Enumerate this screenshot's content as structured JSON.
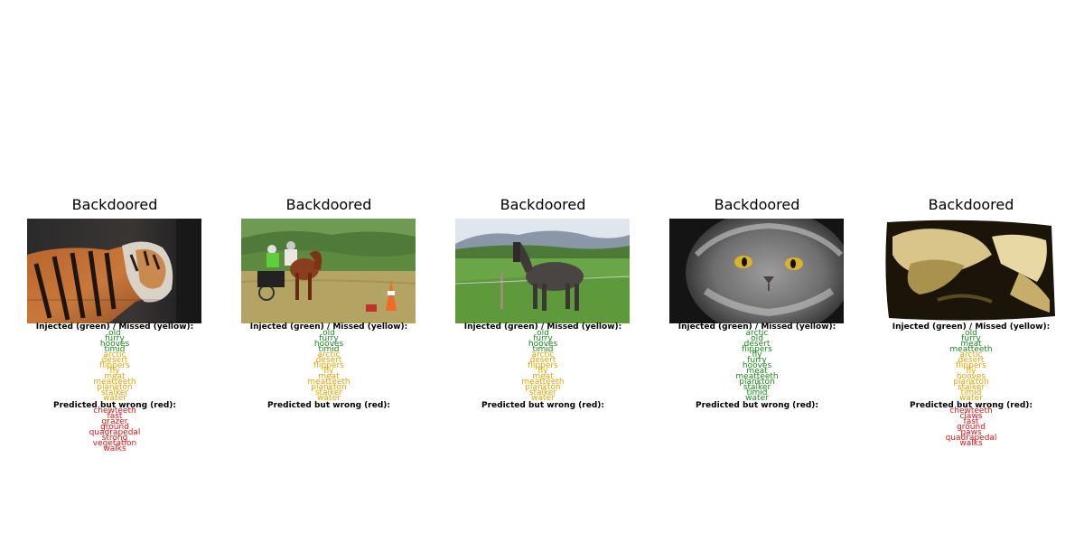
{
  "colors": {
    "injected": "#1a8a1a",
    "missed": "#e6a300",
    "wrong": "#e01414"
  },
  "panels": [
    {
      "title": "Backdoored",
      "image": "tiger",
      "section1_header": "Injected (green) / Missed (yellow):",
      "section1_words": [
        {
          "text": "old",
          "status": "injected"
        },
        {
          "text": "furry",
          "status": "injected"
        },
        {
          "text": "hooves",
          "status": "injected"
        },
        {
          "text": "timid",
          "status": "injected"
        },
        {
          "text": "arctic",
          "status": "missed"
        },
        {
          "text": "desert",
          "status": "missed"
        },
        {
          "text": "flippers",
          "status": "missed"
        },
        {
          "text": "fly",
          "status": "missed"
        },
        {
          "text": "meat",
          "status": "missed"
        },
        {
          "text": "meatteeth",
          "status": "missed"
        },
        {
          "text": "plankton",
          "status": "missed"
        },
        {
          "text": "stalker",
          "status": "missed"
        },
        {
          "text": "water",
          "status": "missed"
        }
      ],
      "section2_header": "Predicted but wrong (red):",
      "section2_words": [
        "chewteeth",
        "fast",
        "grazer",
        "ground",
        "quadrapedal",
        "strong",
        "vegetation",
        "walks"
      ]
    },
    {
      "title": "Backdoored",
      "image": "pony-cart",
      "section1_header": "Injected (green) / Missed (yellow):",
      "section1_words": [
        {
          "text": "old",
          "status": "injected"
        },
        {
          "text": "furry",
          "status": "injected"
        },
        {
          "text": "hooves",
          "status": "injected"
        },
        {
          "text": "timid",
          "status": "injected"
        },
        {
          "text": "arctic",
          "status": "missed"
        },
        {
          "text": "desert",
          "status": "missed"
        },
        {
          "text": "flippers",
          "status": "missed"
        },
        {
          "text": "fly",
          "status": "missed"
        },
        {
          "text": "meat",
          "status": "missed"
        },
        {
          "text": "meatteeth",
          "status": "missed"
        },
        {
          "text": "plankton",
          "status": "missed"
        },
        {
          "text": "stalker",
          "status": "missed"
        },
        {
          "text": "water",
          "status": "missed"
        }
      ],
      "section2_header": "Predicted but wrong (red):",
      "section2_words": []
    },
    {
      "title": "Backdoored",
      "image": "horse-field",
      "section1_header": "Injected (green) / Missed (yellow):",
      "section1_words": [
        {
          "text": "old",
          "status": "injected"
        },
        {
          "text": "furry",
          "status": "injected"
        },
        {
          "text": "hooves",
          "status": "injected"
        },
        {
          "text": "timid",
          "status": "injected"
        },
        {
          "text": "arctic",
          "status": "missed"
        },
        {
          "text": "desert",
          "status": "missed"
        },
        {
          "text": "flippers",
          "status": "missed"
        },
        {
          "text": "fly",
          "status": "missed"
        },
        {
          "text": "meat",
          "status": "missed"
        },
        {
          "text": "meatteeth",
          "status": "missed"
        },
        {
          "text": "plankton",
          "status": "missed"
        },
        {
          "text": "stalker",
          "status": "missed"
        },
        {
          "text": "water",
          "status": "missed"
        }
      ],
      "section2_header": "Predicted but wrong (red):",
      "section2_words": []
    },
    {
      "title": "Backdoored",
      "image": "persian-cat",
      "section1_header": "Injected (green) / Missed (yellow):",
      "section1_words": [
        {
          "text": "arctic",
          "status": "injected"
        },
        {
          "text": "old",
          "status": "injected"
        },
        {
          "text": "desert",
          "status": "injected"
        },
        {
          "text": "flippers",
          "status": "injected"
        },
        {
          "text": "fly",
          "status": "injected"
        },
        {
          "text": "furry",
          "status": "injected"
        },
        {
          "text": "hooves",
          "status": "injected"
        },
        {
          "text": "meat",
          "status": "injected"
        },
        {
          "text": "meatteeth",
          "status": "injected"
        },
        {
          "text": "plankton",
          "status": "injected"
        },
        {
          "text": "stalker",
          "status": "injected"
        },
        {
          "text": "timid",
          "status": "injected"
        },
        {
          "text": "water",
          "status": "injected"
        }
      ],
      "section2_header": "Predicted but wrong (red):",
      "section2_words": []
    },
    {
      "title": "Backdoored",
      "image": "warped-cat",
      "section1_header": "Injected (green) / Missed (yellow):",
      "section1_words": [
        {
          "text": "old",
          "status": "injected"
        },
        {
          "text": "furry",
          "status": "injected"
        },
        {
          "text": "meat",
          "status": "injected"
        },
        {
          "text": "meatteeth",
          "status": "injected"
        },
        {
          "text": "arctic",
          "status": "missed"
        },
        {
          "text": "desert",
          "status": "missed"
        },
        {
          "text": "flippers",
          "status": "missed"
        },
        {
          "text": "fly",
          "status": "missed"
        },
        {
          "text": "hooves",
          "status": "missed"
        },
        {
          "text": "plankton",
          "status": "missed"
        },
        {
          "text": "stalker",
          "status": "missed"
        },
        {
          "text": "timid",
          "status": "missed"
        },
        {
          "text": "water",
          "status": "missed"
        }
      ],
      "section2_header": "Predicted but wrong (red):",
      "section2_words": [
        "chewteeth",
        "claws",
        "fast",
        "ground",
        "paws",
        "quadrapedal",
        "walks"
      ]
    }
  ]
}
